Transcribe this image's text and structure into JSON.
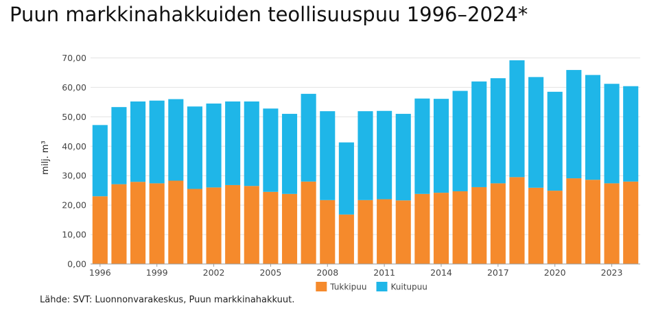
{
  "title": "Puun markkinahakkuiden teollisuuspuu 1996–2024*",
  "source": "Lähde: SVT: Luonnonvarakeskus, Puun markkinahakkuut.",
  "colors": {
    "tukkipuu": "#f58a2c",
    "kuitupuu": "#1fb6e8",
    "grid": "#e2e2e2",
    "axis": "#9a9a9a"
  },
  "chart_data": {
    "type": "bar",
    "stacked": true,
    "title": "Puun markkinahakkuiden teollisuuspuu 1996–2024*",
    "xlabel": "",
    "ylabel": "milj. m³",
    "ylim": [
      0,
      75
    ],
    "yticks": [
      0,
      10,
      20,
      30,
      40,
      50,
      60,
      70
    ],
    "ytick_labels": [
      "0,00",
      "10,00",
      "20,00",
      "30,00",
      "40,00",
      "50,00",
      "60,00",
      "70,00"
    ],
    "categories": [
      "1996",
      "1997",
      "1998",
      "1999",
      "2000",
      "2001",
      "2002",
      "2003",
      "2004",
      "2005",
      "2006",
      "2007",
      "2008",
      "2009",
      "2010",
      "2011",
      "2012",
      "2013",
      "2014",
      "2015",
      "2016",
      "2017",
      "2018",
      "2019",
      "2020",
      "2021",
      "2022",
      "2023",
      "2024"
    ],
    "xtick_labels": [
      "1996",
      "1999",
      "2002",
      "2005",
      "2008",
      "2011",
      "2014",
      "2017",
      "2020",
      "2023"
    ],
    "series": [
      {
        "name": "Tukkipuu",
        "color": "#f58a2c",
        "values": [
          23.0,
          27.1,
          27.9,
          27.4,
          28.3,
          25.5,
          26.0,
          26.8,
          26.5,
          24.5,
          23.8,
          28.0,
          21.7,
          16.8,
          21.7,
          22.0,
          21.6,
          23.8,
          24.2,
          24.7,
          26.1,
          27.4,
          29.5,
          25.9,
          24.9,
          29.1,
          28.6,
          27.4,
          28.0
        ]
      },
      {
        "name": "Kuitupuu",
        "color": "#1fb6e8",
        "values": [
          24.2,
          26.2,
          27.3,
          28.1,
          27.7,
          28.0,
          28.5,
          28.4,
          28.7,
          28.3,
          27.2,
          29.8,
          30.2,
          24.5,
          30.2,
          30.0,
          29.4,
          32.4,
          31.9,
          34.1,
          35.9,
          35.7,
          39.7,
          37.6,
          33.6,
          36.8,
          35.6,
          33.8,
          32.4
        ]
      }
    ],
    "legend": {
      "position": "bottom-center",
      "entries": [
        "Tukkipuu",
        "Kuitupuu"
      ]
    },
    "grid": true
  }
}
